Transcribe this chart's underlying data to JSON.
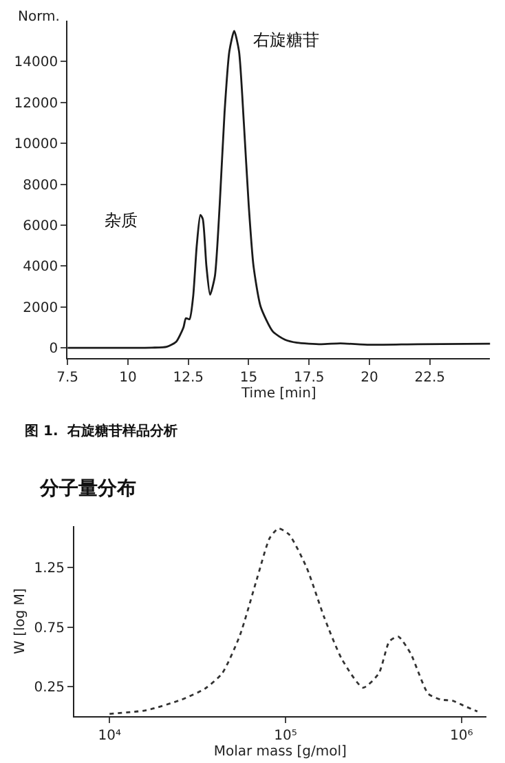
{
  "chart_data": [
    {
      "type": "line",
      "xlabel": "Time [min]",
      "ylabel": "Norm.",
      "line_style": "solid",
      "annotations": [
        "右旋糖苷",
        "杂质",
        "图 1.  右旋糖苷样品分析"
      ],
      "xlim": [
        7.5,
        25
      ],
      "ylim": [
        -500,
        16000
      ],
      "xticks": [
        7.5,
        10,
        12.5,
        15,
        17.5,
        20,
        22.5
      ],
      "yticks": [
        0,
        2000,
        4000,
        6000,
        8000,
        10000,
        12000,
        14000
      ],
      "series": [
        {
          "color": "#1a1a1a",
          "x": [
            7.5,
            10,
            11,
            11.6,
            12.0,
            12.3,
            12.4,
            12.55,
            12.7,
            12.85,
            13.0,
            13.1,
            13.25,
            13.4,
            13.6,
            13.8,
            14.0,
            14.2,
            14.4,
            14.6,
            14.8,
            15.0,
            15.2,
            15.5,
            16,
            16.5,
            17,
            18,
            18.8,
            20,
            22,
            25
          ],
          "values": [
            0,
            0,
            10,
            50,
            300,
            1000,
            1450,
            1400,
            2500,
            5000,
            6500,
            6300,
            4000,
            2600,
            3500,
            7000,
            11500,
            14500,
            15500,
            14500,
            11000,
            7000,
            4000,
            2000,
            800,
            400,
            250,
            180,
            220,
            150,
            180,
            200
          ]
        }
      ]
    },
    {
      "type": "line",
      "title": "分子量分布",
      "xlabel": "Molar mass [g/mol]",
      "ylabel": "W [log M]",
      "log": "x",
      "line_style": "dotted",
      "xlim": [
        6300,
        1380000
      ],
      "ylim": [
        0,
        1.6
      ],
      "xticks": [
        {
          "value": 10000,
          "label": "10⁴"
        },
        {
          "value": 100000,
          "label": "10⁵"
        },
        {
          "value": 1000000,
          "label": "10⁶"
        }
      ],
      "yticks": [
        0.25,
        0.75,
        1.25
      ],
      "series": [
        {
          "color": "#333333",
          "x": [
            10000,
            16200,
            25700,
            34700,
            43600,
            55000,
            69200,
            81300,
            91200,
            104700,
            131800,
            166000,
            208900,
            275400,
            338800,
            389000,
            436500,
            512900,
            645700,
            758600,
            891300,
            1023000,
            1230000
          ],
          "values": [
            0.02,
            0.05,
            0.14,
            0.23,
            0.36,
            0.68,
            1.17,
            1.5,
            1.58,
            1.53,
            1.25,
            0.83,
            0.48,
            0.24,
            0.36,
            0.63,
            0.67,
            0.53,
            0.19,
            0.14,
            0.13,
            0.09,
            0.04
          ]
        }
      ]
    }
  ]
}
